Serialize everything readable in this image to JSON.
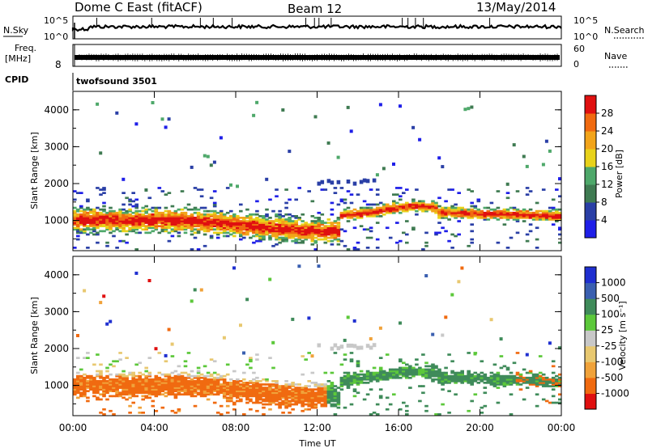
{
  "header": {
    "radar": "Dome C East (fitACF)",
    "beam": "Beam 12",
    "date": "13/May/2014"
  },
  "aux_panels": {
    "nsky_label": "N.Sky",
    "nsky_ticks": [
      "10^5",
      "10^0"
    ],
    "nsearch_label": "N.Search",
    "nsearch_ticks": [
      "10^5",
      "10^0"
    ],
    "freq_label": "Freq.",
    "freq_unit": "[MHz]",
    "freq_tick": "8",
    "nave_label": "Nave",
    "nave_ticks": [
      "60",
      "0"
    ],
    "cpid_label": "CPID",
    "cpid_value": "twofsound 3501"
  },
  "colors": {
    "power": [
      "#1f1fe8",
      "#2a3fa6",
      "#3f7b52",
      "#4ea86a",
      "#e8d21a",
      "#f2a41a",
      "#f06a10",
      "#e01010"
    ],
    "velocity": [
      "#e01010",
      "#f06a10",
      "#f0a23a",
      "#e8c870",
      "#c8c8c8",
      "#5cc83a",
      "#3f8b5a",
      "#3a5fb0",
      "#1f2fd0"
    ]
  },
  "chart_data": [
    {
      "type": "heatmap",
      "title": "Power",
      "ylabel": "Slant Range [km]",
      "xlabel": "",
      "x_ticks": [
        "00:00",
        "04:00",
        "08:00",
        "12:00",
        "16:00",
        "20:00",
        "00:00"
      ],
      "y_ticks": [
        1000,
        2000,
        3000,
        4000
      ],
      "ylim": [
        180,
        4500
      ],
      "colorbar": {
        "label": "Power [dB]",
        "ticks": [
          4,
          8,
          12,
          16,
          20,
          24,
          28
        ]
      }
    },
    {
      "type": "heatmap",
      "title": "Velocity",
      "ylabel": "Slant Range [km]",
      "xlabel": "Time UT",
      "x_ticks": [
        "00:00",
        "04:00",
        "08:00",
        "12:00",
        "16:00",
        "20:00",
        "00:00"
      ],
      "y_ticks": [
        1000,
        2000,
        3000,
        4000
      ],
      "ylim": [
        180,
        4500
      ],
      "colorbar": {
        "label": "Velocity [m s⁻¹]",
        "ticks": [
          1000,
          500,
          100,
          25,
          -25,
          -100,
          -500,
          -1000
        ]
      }
    }
  ]
}
